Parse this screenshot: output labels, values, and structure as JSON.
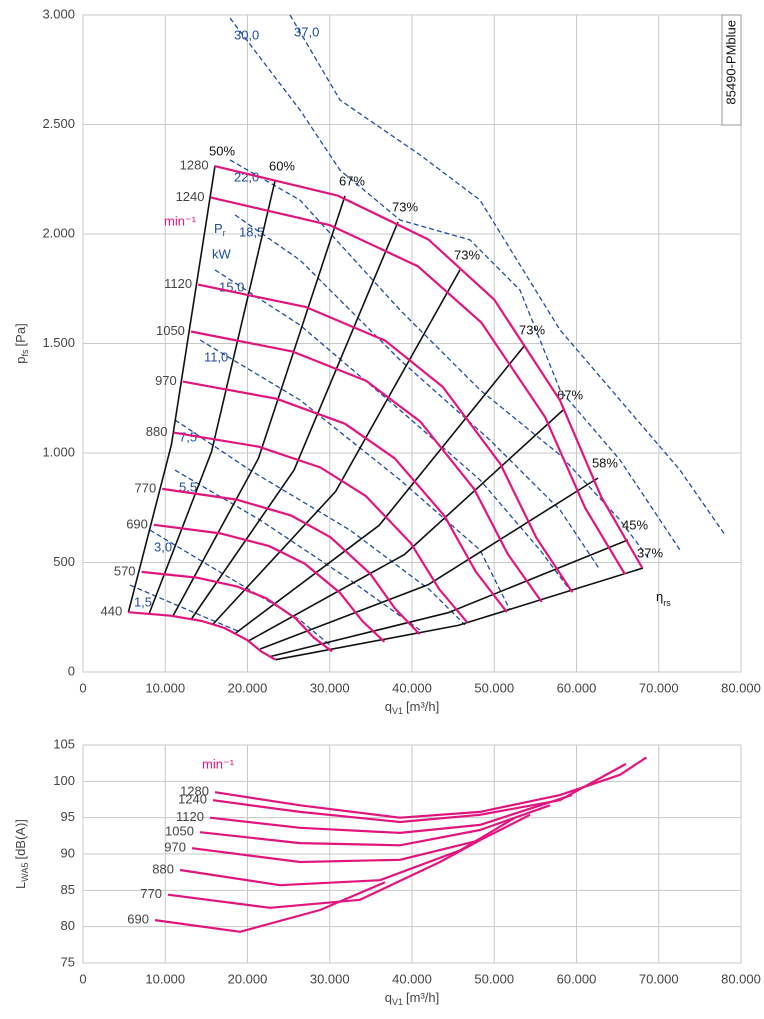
{
  "chart_data": [
    {
      "type": "line",
      "x_label": {
        "symbol": "q",
        "subscript": "V1",
        "unit": "[m³/h]"
      },
      "y_label": {
        "symbol": "p",
        "subscript": "fs",
        "unit": "[Pa]"
      },
      "side_label": "85490-PMblue",
      "speed_unit": "min⁻¹",
      "power_symbol": {
        "symbol": "P",
        "subscript": "r"
      },
      "power_unit": "kW",
      "efficiency_symbol": {
        "symbol": "η",
        "subscript": "rs"
      },
      "xlim": [
        0,
        80000
      ],
      "xticks": [
        0,
        {
          "value": 10000,
          "label": "10.000"
        },
        {
          "value": 20000,
          "label": "20.000"
        },
        {
          "value": 30000,
          "label": "30.000"
        },
        {
          "value": 40000,
          "label": "40.000"
        },
        {
          "value": 50000,
          "label": "50.000"
        },
        {
          "value": 60000,
          "label": "60.000"
        },
        {
          "value": 70000,
          "label": "70.000"
        },
        {
          "value": 80000,
          "label": "80.000"
        }
      ],
      "ylim": [
        0,
        3000
      ],
      "yticks": [
        0,
        500,
        {
          "value": 1000,
          "label": "1.000"
        },
        {
          "value": 1500,
          "label": "1.500"
        },
        {
          "value": 2000,
          "label": "2.000"
        },
        {
          "value": 2500,
          "label": "2.500"
        },
        {
          "value": 3000,
          "label": "3.000"
        }
      ],
      "grid": true,
      "series": [
        {
          "name": "1280",
          "color": "#e2157f",
          "x": [
            16000,
            31000,
            42000,
            50000,
            58000,
            63000,
            68000
          ],
          "values": [
            2310,
            2175,
            1975,
            1700,
            1240,
            800,
            475
          ]
        },
        {
          "name": "1240",
          "color": "#e2157f",
          "x": [
            15500,
            30040,
            40700,
            48450,
            56200,
            61050,
            65900
          ],
          "values": [
            2167,
            2040,
            1853,
            1595,
            1163,
            750,
            446
          ]
        },
        {
          "name": "1120",
          "color": "#e2157f",
          "x": [
            14000,
            27125,
            36750,
            43750,
            50750,
            55125,
            59500
          ],
          "values": [
            1769,
            1666,
            1513,
            1302,
            950,
            613,
            364
          ]
        },
        {
          "name": "1050",
          "color": "#e2157f",
          "x": [
            13120,
            25420,
            34440,
            41000,
            47560,
            51660,
            55760
          ],
          "values": [
            1555,
            1464,
            1329,
            1144,
            835,
            538,
            320
          ]
        },
        {
          "name": "970",
          "color": "#e2157f",
          "x": [
            12130,
            23500,
            31840,
            37900,
            43960,
            47750,
            51540
          ],
          "values": [
            1326,
            1248,
            1134,
            976,
            712,
            459,
            273
          ]
        },
        {
          "name": "880",
          "color": "#e2157f",
          "x": [
            11000,
            21310,
            28875,
            34375,
            39875,
            43310,
            46750
          ],
          "values": [
            1093,
            1029,
            934,
            804,
            587,
            378,
            225
          ]
        },
        {
          "name": "770",
          "color": "#e2157f",
          "x": [
            9630,
            18660,
            25280,
            30100,
            34920,
            37930,
            40940
          ],
          "values": [
            836,
            787,
            715,
            615,
            449,
            290,
            172
          ]
        },
        {
          "name": "690",
          "color": "#e2157f",
          "x": [
            8620,
            16710,
            22640,
            26950,
            31260,
            33960,
            36650
          ],
          "values": [
            672,
            633,
            575,
            495,
            361,
            233,
            138
          ]
        },
        {
          "name": "570",
          "color": "#e2157f",
          "x": [
            7120,
            13800,
            18690,
            22250,
            25810,
            28040,
            30260
          ],
          "values": [
            457,
            431,
            391,
            337,
            246,
            158,
            94
          ]
        },
        {
          "name": "440",
          "color": "#e2157f",
          "x": [
            5500,
            10660,
            14450,
            17200,
            19950,
            21670,
            23390
          ],
          "values": [
            273,
            257,
            233,
            201,
            146,
            94,
            56
          ]
        }
      ],
      "efficiency_color": "#111111",
      "efficiency_lines": [
        {
          "name": "50%",
          "x": [
            5520,
            10750,
            16050
          ],
          "values": [
            273,
            1038,
            2311
          ]
        },
        {
          "name": "60%",
          "x": [
            8030,
            15640,
            23340
          ],
          "values": [
            265,
            1007,
            2242
          ]
        },
        {
          "name": "67%",
          "x": [
            10960,
            21340,
            31850
          ],
          "values": [
            257,
            976,
            2174
          ]
        },
        {
          "name": "73%",
          "x": [
            13180,
            25660,
            38300
          ],
          "values": [
            242,
            923,
            2055
          ]
        },
        {
          "name": "73%",
          "x": [
            15770,
            30710,
            45840
          ],
          "values": [
            217,
            824,
            1836
          ]
        },
        {
          "name": "73%",
          "x": [
            18490,
            36010,
            53740
          ],
          "values": [
            176,
            670,
            1493
          ]
        },
        {
          "name": "67%",
          "x": [
            20080,
            39100,
            58360
          ],
          "values": [
            141,
            537,
            1196
          ]
        },
        {
          "name": "58%",
          "x": [
            21540,
            41950,
            62610
          ],
          "values": [
            105,
            398,
            886
          ]
        },
        {
          "name": "45%",
          "x": [
            22800,
            44390,
            66260
          ],
          "values": [
            71,
            271,
            603
          ]
        },
        {
          "name": "37%",
          "x": [
            23420,
            45620,
            68090
          ],
          "values": [
            56,
            213,
            475
          ]
        }
      ],
      "power_color": "#1f4e9c",
      "power_lines": [
        {
          "name": "30,0",
          "x": [
            17870,
            26380,
            31250,
            38540,
            47050,
            53130,
            58000,
            65290,
            72580
          ],
          "values": [
            2986,
            2566,
            2292,
            2064,
            1973,
            1744,
            1288,
            968,
            557
          ]
        },
        {
          "name": "37,0",
          "x": [
            25170,
            31250,
            40970,
            48270,
            58000,
            65290,
            72580,
            78050
          ],
          "values": [
            3000,
            2612,
            2361,
            2155,
            1562,
            1242,
            922,
            626
          ]
        },
        {
          "name": "22,0",
          "x": [
            17870,
            26380,
            38540,
            48270,
            58000,
            65290,
            68940
          ],
          "values": [
            2338,
            2155,
            1653,
            1288,
            991,
            694,
            511
          ]
        },
        {
          "name": "18,5",
          "x": [
            18480,
            26380,
            38540,
            49480,
            58000,
            62860
          ],
          "values": [
            2087,
            1881,
            1425,
            1059,
            740,
            466
          ]
        },
        {
          "name": "15,0",
          "x": [
            16050,
            26380,
            38540,
            48270,
            55560,
            59210
          ],
          "values": [
            1836,
            1584,
            1196,
            877,
            557,
            374
          ]
        },
        {
          "name": "11,0",
          "x": [
            14220,
            26380,
            38540,
            48270,
            51920
          ],
          "values": [
            1516,
            1242,
            877,
            557,
            283
          ]
        },
        {
          "name": "7,5",
          "x": [
            11190,
            20300,
            32460,
            42190,
            46440
          ],
          "values": [
            1151,
            922,
            648,
            374,
            215
          ]
        },
        {
          "name": "5,5",
          "x": [
            11190,
            21520,
            32460,
            40970
          ],
          "values": [
            922,
            694,
            420,
            192
          ]
        },
        {
          "name": "3,0",
          "x": [
            8150,
            20300,
            26380,
            30030
          ],
          "values": [
            648,
            374,
            237,
            123
          ]
        },
        {
          "name": "1,5",
          "x": [
            5710,
            14220,
            19090
          ],
          "values": [
            397,
            260,
            183
          ]
        }
      ]
    },
    {
      "type": "line",
      "x_label": {
        "symbol": "q",
        "subscript": "V1",
        "unit": "[m³/h]"
      },
      "y_label": {
        "symbol": "L",
        "subscript": "WA5",
        "unit": "[dB(A)]"
      },
      "speed_unit": "min⁻¹",
      "xlim": [
        0,
        80000
      ],
      "xticks": [
        0,
        {
          "value": 10000,
          "label": "10.000"
        },
        {
          "value": 20000,
          "label": "20.000"
        },
        {
          "value": 30000,
          "label": "30.000"
        },
        {
          "value": 40000,
          "label": "40.000"
        },
        {
          "value": 50000,
          "label": "50.000"
        },
        {
          "value": 60000,
          "label": "60.000"
        },
        {
          "value": 70000,
          "label": "70.000"
        },
        {
          "value": 80000,
          "label": "80.000"
        }
      ],
      "ylim": [
        75,
        105
      ],
      "yticks": [
        75,
        80,
        85,
        90,
        95,
        100,
        105
      ],
      "grid": true,
      "series": [
        {
          "name": "1280",
          "color": "#e2157f",
          "x": [
            16050,
            26380,
            38540,
            48270,
            58000,
            65290,
            68500
          ],
          "values": [
            98.5,
            96.7,
            95.0,
            95.8,
            98.1,
            100.9,
            103.3
          ]
        },
        {
          "name": "1240",
          "color": "#e2157f",
          "x": [
            15800,
            26380,
            38540,
            48270,
            58000,
            66000
          ],
          "values": [
            97.4,
            95.8,
            94.4,
            95.4,
            97.4,
            102.4
          ]
        },
        {
          "name": "1120",
          "color": "#e2157f",
          "x": [
            15440,
            26380,
            38540,
            48270,
            59450
          ],
          "values": [
            95.0,
            93.6,
            92.9,
            94.0,
            98.1
          ]
        },
        {
          "name": "1050",
          "color": "#e2157f",
          "x": [
            14220,
            26380,
            38540,
            48270,
            56780
          ],
          "values": [
            93.0,
            91.5,
            91.2,
            93.3,
            96.7
          ]
        },
        {
          "name": "970",
          "color": "#e2157f",
          "x": [
            13250,
            26380,
            38540,
            48270,
            54350
          ],
          "values": [
            90.8,
            88.9,
            89.2,
            91.9,
            95.4
          ]
        },
        {
          "name": "880",
          "color": "#e2157f",
          "x": [
            11790,
            23950,
            36110,
            45840,
            52520
          ],
          "values": [
            87.8,
            85.7,
            86.4,
            90.5,
            95.0
          ]
        },
        {
          "name": "770",
          "color": "#e2157f",
          "x": [
            10330,
            22740,
            33680,
            43400,
            48270
          ],
          "values": [
            84.4,
            82.6,
            83.7,
            88.9,
            91.9
          ]
        },
        {
          "name": "690",
          "color": "#e2157f",
          "x": [
            8750,
            19090,
            28810,
            36720
          ],
          "values": [
            80.9,
            79.3,
            82.3,
            86.1
          ]
        }
      ]
    }
  ]
}
